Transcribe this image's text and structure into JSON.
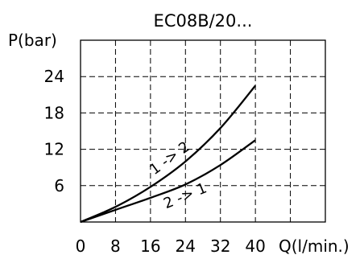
{
  "chart_data": {
    "type": "line",
    "title": "EC08B/20...",
    "xlabel": "Q(l/min.)",
    "ylabel": "P(bar)",
    "xlim": [
      0,
      56
    ],
    "ylim": [
      0,
      30
    ],
    "x_ticks": [
      "0",
      "8",
      "16",
      "24",
      "32",
      "40"
    ],
    "y_ticks": [
      "6",
      "12",
      "18",
      "24"
    ],
    "grid": true,
    "series": [
      {
        "name": "1 -> 2",
        "x": [
          0,
          8,
          16,
          24,
          32,
          40
        ],
        "y": [
          0,
          2.5,
          5.8,
          10.0,
          15.5,
          22.5
        ]
      },
      {
        "name": "2 -> 1",
        "x": [
          0,
          8,
          16,
          24,
          32,
          40
        ],
        "y": [
          0,
          2.0,
          4.0,
          6.2,
          9.4,
          13.5
        ]
      }
    ]
  }
}
